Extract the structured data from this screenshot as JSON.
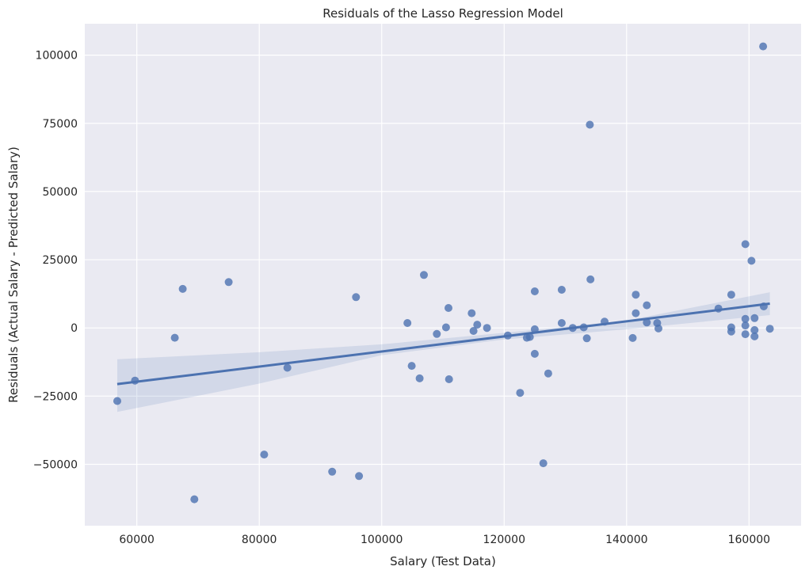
{
  "chart_data": {
    "type": "scatter",
    "title": "Residuals of the Lasso Regression Model",
    "xlabel": "Salary (Test Data)",
    "ylabel": "Residuals (Actual Salary - Predicted Salary)",
    "xlim": [
      51500,
      168500
    ],
    "ylim": [
      -72500,
      111500
    ],
    "xticks": [
      60000,
      80000,
      100000,
      120000,
      140000,
      160000
    ],
    "xtick_labels": [
      "60000",
      "80000",
      "100000",
      "120000",
      "140000",
      "160000"
    ],
    "yticks": [
      -50000,
      -25000,
      0,
      25000,
      50000,
      75000,
      100000
    ],
    "ytick_labels": [
      "−50000",
      "−25000",
      "0",
      "25000",
      "50000",
      "75000",
      "100000"
    ],
    "grid": true,
    "points": [
      [
        56800,
        -26800
      ],
      [
        59700,
        -19300
      ],
      [
        66200,
        -3600
      ],
      [
        67500,
        14300
      ],
      [
        69400,
        -62800
      ],
      [
        75000,
        16800
      ],
      [
        80800,
        -46400
      ],
      [
        84600,
        -14600
      ],
      [
        91900,
        -52700
      ],
      [
        95800,
        11300
      ],
      [
        96300,
        -54300
      ],
      [
        104200,
        1800
      ],
      [
        104900,
        -13900
      ],
      [
        106200,
        -18500
      ],
      [
        106900,
        19400
      ],
      [
        109000,
        -2200
      ],
      [
        110500,
        200
      ],
      [
        110900,
        7300
      ],
      [
        111000,
        -18800
      ],
      [
        114700,
        5400
      ],
      [
        115000,
        -1100
      ],
      [
        115600,
        1200
      ],
      [
        117200,
        0
      ],
      [
        120600,
        -2800
      ],
      [
        122600,
        -23800
      ],
      [
        123700,
        -3600
      ],
      [
        124200,
        -3300
      ],
      [
        125000,
        13400
      ],
      [
        125000,
        -9500
      ],
      [
        125000,
        -500
      ],
      [
        126400,
        -49600
      ],
      [
        127200,
        -16700
      ],
      [
        129400,
        14000
      ],
      [
        129400,
        1800
      ],
      [
        131200,
        0
      ],
      [
        133000,
        200
      ],
      [
        133500,
        -3800
      ],
      [
        134000,
        74500
      ],
      [
        134100,
        17800
      ],
      [
        136400,
        2300
      ],
      [
        141000,
        -3700
      ],
      [
        141500,
        12200
      ],
      [
        141500,
        5400
      ],
      [
        143300,
        8300
      ],
      [
        143300,
        2000
      ],
      [
        145000,
        1800
      ],
      [
        145200,
        -200
      ],
      [
        155000,
        7100
      ],
      [
        157100,
        12200
      ],
      [
        157100,
        -1300
      ],
      [
        157100,
        200
      ],
      [
        159400,
        30700
      ],
      [
        159400,
        3300
      ],
      [
        159400,
        900
      ],
      [
        159400,
        -2300
      ],
      [
        160400,
        24600
      ],
      [
        160900,
        3600
      ],
      [
        160900,
        -800
      ],
      [
        160900,
        -3100
      ],
      [
        162300,
        103200
      ],
      [
        162400,
        7900
      ],
      [
        163400,
        -300
      ]
    ],
    "fit_line": {
      "x": [
        56800,
        163400
      ],
      "y": [
        -20600,
        8900
      ]
    },
    "confidence_band": {
      "x": [
        56800,
        80000,
        100000,
        120000,
        140000,
        163400
      ],
      "upper": [
        -11500,
        -8900,
        -6000,
        -1800,
        2700,
        13100
      ],
      "lower": [
        -30800,
        -20400,
        -10000,
        -4200,
        -500,
        4700
      ]
    },
    "colors": {
      "background": "#eaeaf2",
      "grid": "#ffffff",
      "points": "#4c72b0",
      "text": "#262626"
    }
  }
}
